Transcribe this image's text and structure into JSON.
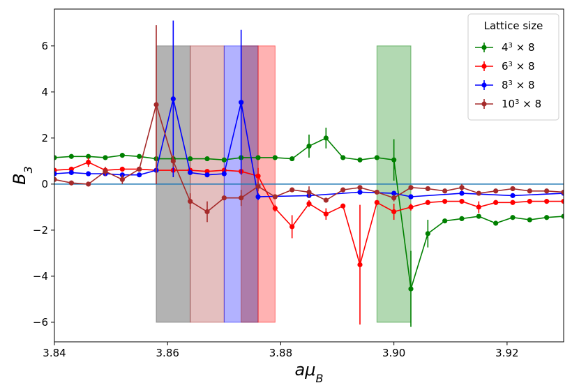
{
  "chart_data": {
    "type": "line",
    "ylabel": "B_3",
    "xlabel": "aμ_B",
    "xlim": [
      3.84,
      3.93
    ],
    "ylim": [
      -6.85,
      7.6
    ],
    "xticks": [
      3.84,
      3.86,
      3.88,
      3.9,
      3.92
    ],
    "xtick_labels": [
      "3.84",
      "3.86",
      "3.88",
      "3.90",
      "3.92"
    ],
    "yticks": [
      -6,
      -4,
      -2,
      0,
      2,
      4,
      6
    ],
    "ytick_labels": [
      "−6",
      "−4",
      "−2",
      "0",
      "2",
      "4",
      "6"
    ],
    "hline": {
      "y": 0,
      "color": "#1f77b4"
    },
    "legend": {
      "title": "Lattice size",
      "position": "top-right"
    },
    "bands": [
      {
        "x0": 3.858,
        "x1": 3.864,
        "y0": -6,
        "y1": 6,
        "color": "#808080",
        "alpha": 0.6
      },
      {
        "x0": 3.864,
        "x1": 3.87,
        "y0": -6,
        "y1": 6,
        "color": "#a52a2a",
        "alpha": 0.3
      },
      {
        "x0": 3.87,
        "x1": 3.876,
        "y0": -6,
        "y1": 6,
        "color": "#0000ff",
        "alpha": 0.3
      },
      {
        "x0": 3.873,
        "x1": 3.876,
        "y0": -6,
        "y1": 6,
        "color": "#a52a2a",
        "alpha": 0.4
      },
      {
        "x0": 3.876,
        "x1": 3.879,
        "y0": -6,
        "y1": 6,
        "color": "#ff0000",
        "alpha": 0.3
      },
      {
        "x0": 3.897,
        "x1": 3.903,
        "y0": -6,
        "y1": 6,
        "color": "#008000",
        "alpha": 0.3
      }
    ],
    "series": [
      {
        "name": "4³ × 8",
        "base": "4",
        "exp": "3",
        "tail": " × 8",
        "color": "#008000",
        "x": [
          3.84,
          3.843,
          3.846,
          3.849,
          3.852,
          3.855,
          3.858,
          3.861,
          3.864,
          3.867,
          3.87,
          3.873,
          3.876,
          3.879,
          3.882,
          3.885,
          3.888,
          3.891,
          3.894,
          3.897,
          3.9,
          3.903,
          3.906,
          3.909,
          3.912,
          3.915,
          3.918,
          3.921,
          3.924,
          3.927,
          3.93
        ],
        "y": [
          1.15,
          1.2,
          1.2,
          1.15,
          1.25,
          1.2,
          1.1,
          1.1,
          1.1,
          1.1,
          1.05,
          1.15,
          1.15,
          1.15,
          1.1,
          1.65,
          2.0,
          1.15,
          1.05,
          1.15,
          1.05,
          -4.55,
          -2.15,
          -1.6,
          -1.5,
          -1.4,
          -1.7,
          -1.45,
          -1.55,
          -1.45,
          -1.4
        ],
        "err": [
          0.08,
          0.05,
          0.05,
          0.05,
          0.05,
          0.05,
          0.05,
          0.05,
          0.05,
          0.05,
          0.05,
          0.05,
          0.05,
          0.05,
          0.05,
          0.5,
          0.45,
          0.05,
          0.05,
          0.05,
          0.9,
          1.65,
          0.6,
          0.05,
          0.05,
          0.05,
          0.05,
          0.05,
          0.05,
          0.05,
          0.05
        ]
      },
      {
        "name": "6³ × 8",
        "base": "6",
        "exp": "3",
        "tail": " × 8",
        "color": "#ff0000",
        "x": [
          3.84,
          3.843,
          3.846,
          3.849,
          3.852,
          3.855,
          3.858,
          3.861,
          3.864,
          3.867,
          3.87,
          3.873,
          3.876,
          3.879,
          3.882,
          3.885,
          3.888,
          3.891,
          3.894,
          3.897,
          3.9,
          3.903,
          3.906,
          3.909,
          3.912,
          3.915,
          3.918,
          3.921,
          3.924,
          3.927,
          3.93
        ],
        "y": [
          0.6,
          0.65,
          0.95,
          0.6,
          0.65,
          0.65,
          0.6,
          0.6,
          0.6,
          0.55,
          0.6,
          0.55,
          0.35,
          -1.05,
          -1.85,
          -0.85,
          -1.3,
          -0.95,
          -3.5,
          -0.8,
          -1.2,
          -1.0,
          -0.8,
          -0.75,
          -0.75,
          -1.0,
          -0.8,
          -0.8,
          -0.75,
          -0.75,
          -0.75
        ],
        "err": [
          0.1,
          0.1,
          0.2,
          0.1,
          0.1,
          0.1,
          0.1,
          0.1,
          0.1,
          0.1,
          0.1,
          0.1,
          0.35,
          0.15,
          0.5,
          0.15,
          0.25,
          0.1,
          2.6,
          0.1,
          0.35,
          0.15,
          0.1,
          0.1,
          0.1,
          0.25,
          0.1,
          0.1,
          0.1,
          0.1,
          0.1
        ]
      },
      {
        "name": "8³ × 8",
        "base": "8",
        "exp": "3",
        "tail": " × 8",
        "color": "#0000ff",
        "x": [
          3.84,
          3.843,
          3.846,
          3.849,
          3.852,
          3.855,
          3.858,
          3.861,
          3.864,
          3.867,
          3.87,
          3.873,
          3.876,
          3.885,
          3.894,
          3.9,
          3.903,
          3.912,
          3.921,
          3.93
        ],
        "y": [
          0.45,
          0.5,
          0.45,
          0.45,
          0.4,
          0.4,
          0.6,
          3.7,
          0.5,
          0.4,
          0.45,
          3.55,
          -0.55,
          -0.5,
          -0.35,
          -0.4,
          -0.55,
          -0.4,
          -0.5,
          -0.4
        ],
        "err": [
          0.05,
          0.05,
          0.05,
          0.05,
          0.05,
          0.1,
          0.1,
          3.4,
          0.05,
          0.05,
          0.05,
          3.15,
          0.15,
          0.05,
          0.05,
          0.05,
          0.1,
          0.05,
          0.05,
          0.05
        ]
      },
      {
        "name": "10³ × 8",
        "base": "10",
        "exp": "3",
        "tail": " × 8",
        "color": "#a52a2a",
        "x": [
          3.84,
          3.843,
          3.846,
          3.849,
          3.852,
          3.855,
          3.858,
          3.861,
          3.864,
          3.867,
          3.87,
          3.873,
          3.876,
          3.879,
          3.882,
          3.885,
          3.888,
          3.891,
          3.894,
          3.897,
          3.9,
          3.903,
          3.906,
          3.909,
          3.912,
          3.915,
          3.918,
          3.921,
          3.924,
          3.927,
          3.93
        ],
        "y": [
          0.2,
          0.05,
          0.0,
          0.55,
          0.2,
          0.65,
          3.45,
          1.0,
          -0.75,
          -1.2,
          -0.6,
          -0.6,
          -0.1,
          -0.55,
          -0.25,
          -0.35,
          -0.7,
          -0.25,
          -0.15,
          -0.35,
          -0.6,
          -0.15,
          -0.2,
          -0.3,
          -0.15,
          -0.4,
          -0.3,
          -0.2,
          -0.3,
          -0.3,
          -0.35
        ],
        "err": [
          0.05,
          0.05,
          0.1,
          0.2,
          0.2,
          0.1,
          3.45,
          0.25,
          0.35,
          0.45,
          0.1,
          0.35,
          0.2,
          0.1,
          0.05,
          0.25,
          0.1,
          0.05,
          0.05,
          0.05,
          0.15,
          0.05,
          0.05,
          0.05,
          0.15,
          0.05,
          0.05,
          0.05,
          0.05,
          0.05,
          0.05
        ]
      }
    ]
  }
}
